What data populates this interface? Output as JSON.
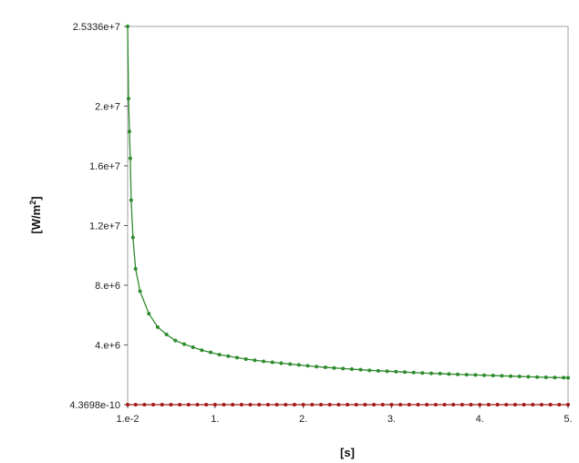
{
  "chart_data": {
    "type": "line",
    "title": "",
    "xlabel": "[s]",
    "ylabel": "[W/m",
    "ylabel_sup": "2",
    "ylabel_close": "]",
    "xlim": [
      0.01,
      5.0
    ],
    "ylim": [
      4.3698e-10,
      25336000
    ],
    "grid": false,
    "legend": "none",
    "x_ticks": [
      {
        "value": 0.01,
        "label": "1.e-2"
      },
      {
        "value": 1.0,
        "label": "1."
      },
      {
        "value": 2.0,
        "label": "2."
      },
      {
        "value": 3.0,
        "label": "3."
      },
      {
        "value": 4.0,
        "label": "4."
      },
      {
        "value": 5.0,
        "label": "5."
      }
    ],
    "y_ticks": [
      {
        "value": 4.3698e-10,
        "label": "4.3698e-10"
      },
      {
        "value": 4000000,
        "label": "4.e+6"
      },
      {
        "value": 8000000,
        "label": "8.e+6"
      },
      {
        "value": 12000000,
        "label": "1.2e+7"
      },
      {
        "value": 16000000,
        "label": "1.6e+7"
      },
      {
        "value": 20000000,
        "label": "2.e+7"
      },
      {
        "value": 25336000,
        "label": "2.5336e+7"
      }
    ],
    "series": [
      {
        "color": "#2e8b2e",
        "x": [
          0.01,
          0.02,
          0.03,
          0.04,
          0.05,
          0.07,
          0.1,
          0.15,
          0.25,
          0.35,
          0.45,
          0.55,
          0.65,
          0.75,
          0.85,
          0.95,
          1.05,
          1.15,
          1.25,
          1.35,
          1.45,
          1.55,
          1.65,
          1.75,
          1.85,
          1.95,
          2.05,
          2.15,
          2.25,
          2.35,
          2.45,
          2.55,
          2.65,
          2.75,
          2.85,
          2.95,
          3.05,
          3.15,
          3.25,
          3.35,
          3.45,
          3.55,
          3.65,
          3.75,
          3.85,
          3.95,
          4.05,
          4.15,
          4.25,
          4.35,
          4.45,
          4.55,
          4.65,
          4.75,
          4.85,
          4.95,
          5.0
        ],
        "values": [
          25336000,
          20500000,
          18300000,
          16500000,
          13700000,
          11200000,
          9100000,
          7600000,
          6100000,
          5200000,
          4700000,
          4300000,
          4050000,
          3850000,
          3650000,
          3500000,
          3350000,
          3250000,
          3150000,
          3050000,
          2980000,
          2900000,
          2840000,
          2780000,
          2720000,
          2660000,
          2600000,
          2550000,
          2500000,
          2460000,
          2420000,
          2380000,
          2340000,
          2300000,
          2270000,
          2240000,
          2210000,
          2180000,
          2150000,
          2120000,
          2100000,
          2080000,
          2050000,
          2030000,
          2010000,
          1990000,
          1970000,
          1950000,
          1930000,
          1910000,
          1890000,
          1870000,
          1850000,
          1830000,
          1820000,
          1810000,
          1800000
        ]
      },
      {
        "color": "#a01818",
        "x": [
          0.01,
          0.1,
          0.2,
          0.3,
          0.4,
          0.5,
          0.6,
          0.7,
          0.8,
          0.9,
          1.0,
          1.1,
          1.2,
          1.3,
          1.4,
          1.5,
          1.6,
          1.7,
          1.8,
          1.9,
          2.0,
          2.1,
          2.2,
          2.3,
          2.4,
          2.5,
          2.6,
          2.7,
          2.8,
          2.9,
          3.0,
          3.1,
          3.2,
          3.3,
          3.4,
          3.5,
          3.6,
          3.7,
          3.8,
          3.9,
          4.0,
          4.1,
          4.2,
          4.3,
          4.4,
          4.5,
          4.6,
          4.7,
          4.8,
          4.9,
          5.0
        ],
        "values": [
          0,
          0,
          0,
          0,
          0,
          0,
          0,
          0,
          0,
          0,
          0,
          0,
          0,
          0,
          0,
          0,
          0,
          0,
          0,
          0,
          0,
          0,
          0,
          0,
          0,
          0,
          0,
          0,
          0,
          0,
          0,
          0,
          0,
          0,
          0,
          0,
          0,
          0,
          0,
          0,
          0,
          0,
          0,
          0,
          0,
          0,
          0,
          0,
          0,
          0,
          0
        ]
      }
    ]
  }
}
